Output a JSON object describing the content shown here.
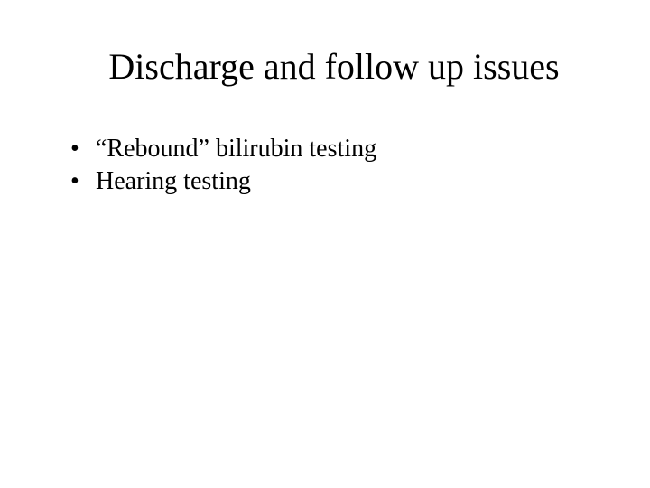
{
  "slide": {
    "title": "Discharge and follow up issues",
    "bullets": [
      "“Rebound” bilirubin testing",
      "Hearing testing"
    ],
    "colors": {
      "background": "#ffffff",
      "text": "#000000"
    },
    "typography": {
      "font_family": "Times New Roman",
      "title_fontsize": 40,
      "body_fontsize": 28
    }
  }
}
